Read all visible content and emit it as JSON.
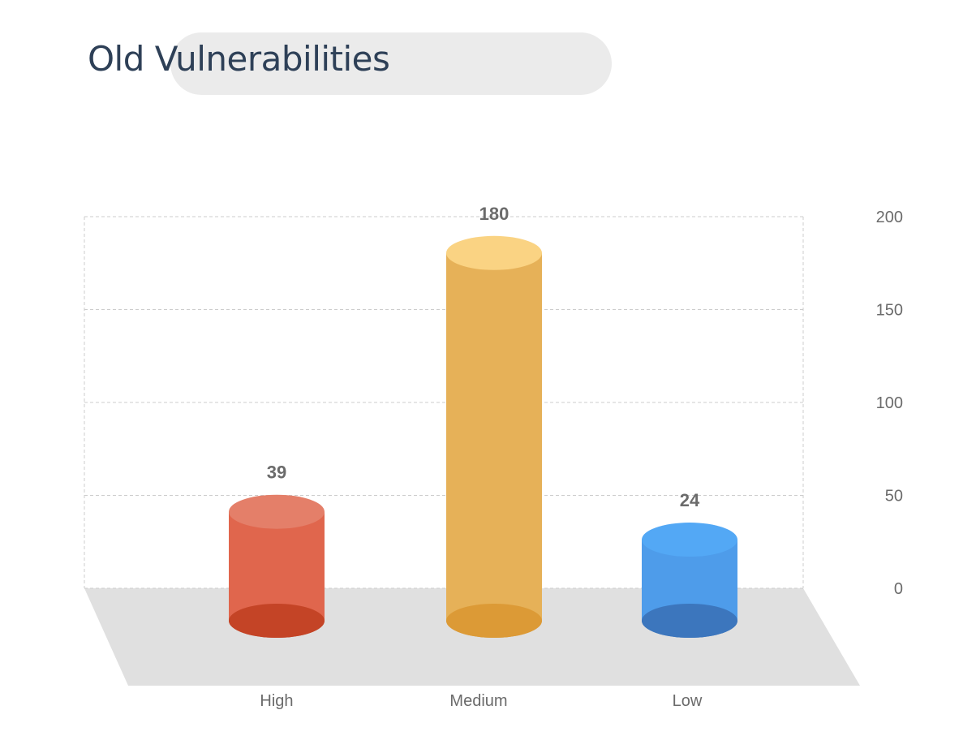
{
  "chart_data": {
    "type": "bar",
    "title": "Old Vulnerabilities",
    "categories": [
      "High",
      "Medium",
      "Low"
    ],
    "values": [
      39,
      180,
      24
    ],
    "ylim": [
      0,
      200
    ],
    "yticks": [
      0,
      50,
      100,
      150,
      200
    ],
    "grid": true,
    "style": "3d-cylinder",
    "y_axis_side": "right",
    "colors": [
      {
        "body": "#e0664d",
        "top": "#e47f69",
        "base": "#c44426"
      },
      {
        "body": "#e6b158",
        "top": "#fad383",
        "base": "#dc9a36"
      },
      {
        "body": "#4e9cea",
        "top": "#53a8f5",
        "base": "#3c76bd"
      }
    ]
  },
  "colors": {
    "title": "#2e4057",
    "title_pill": "#ebebeb",
    "floor": "#e0e0e0",
    "grid": "#cccccc",
    "text": "#6b6b6b"
  }
}
